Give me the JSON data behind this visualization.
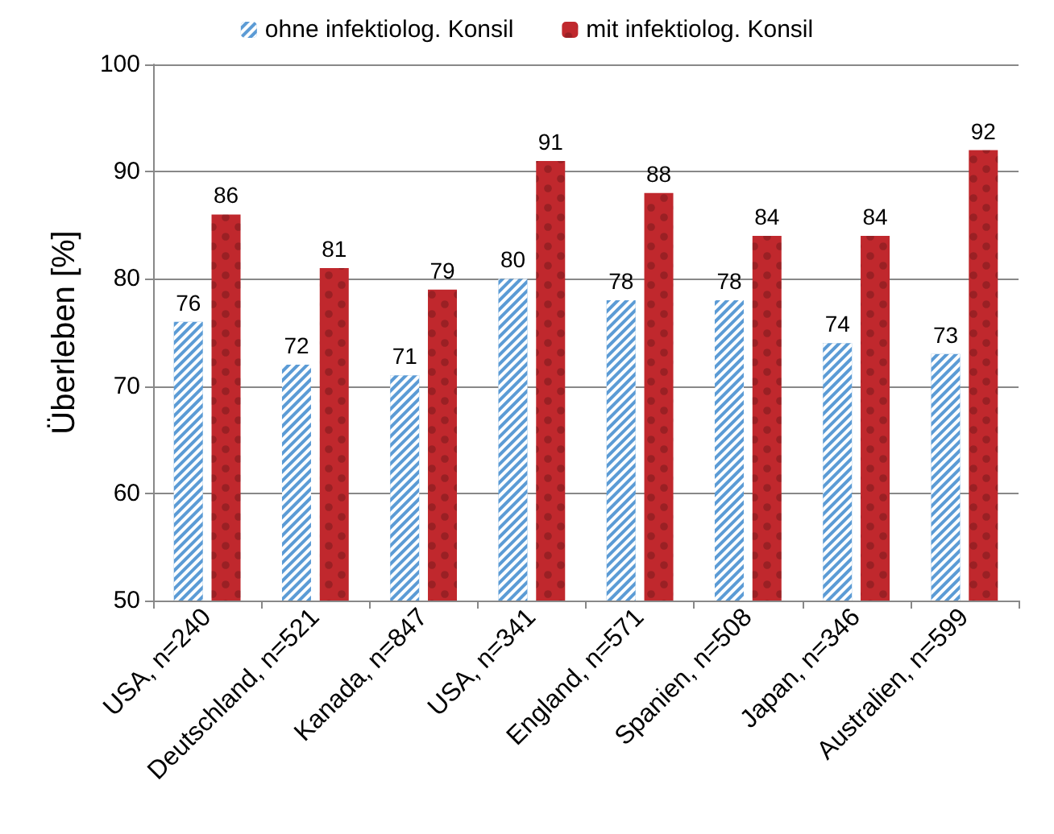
{
  "chart_data": {
    "type": "bar",
    "ylabel": "Überleben [%]",
    "categories": [
      "USA, n=240",
      "Deutschland, n=521",
      "Kanada, n=847",
      "USA, n=341",
      "England, n=571",
      "Spanien, n=508",
      "Japan, n=346",
      "Australien, n=599"
    ],
    "series": [
      {
        "name": "ohne infektiolog. Konsil",
        "color": "#5b9bd5",
        "values": [
          76,
          72,
          71,
          80,
          78,
          78,
          74,
          73
        ]
      },
      {
        "name": "mit infektiolog. Konsil",
        "color": "#c0282d",
        "values": [
          86,
          81,
          79,
          91,
          88,
          84,
          84,
          92
        ]
      }
    ],
    "ylim": [
      50,
      100
    ],
    "yticks": [
      50,
      60,
      70,
      80,
      90,
      100
    ],
    "grid": "y",
    "legend": "top",
    "data_labels": true
  }
}
